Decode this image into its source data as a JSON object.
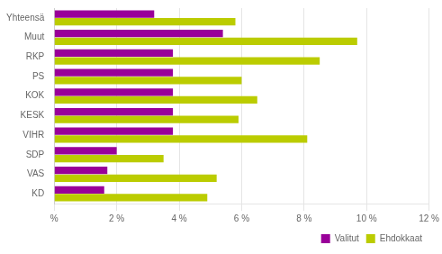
{
  "chart_data": {
    "type": "bar",
    "orientation": "horizontal",
    "categories": [
      "Yhteensä",
      "Muut",
      "RKP",
      "PS",
      "KOK",
      "KESK",
      "VIHR",
      "SDP",
      "VAS",
      "KD"
    ],
    "series": [
      {
        "name": "Valitut",
        "color": "#990099",
        "values": [
          3.2,
          5.4,
          3.8,
          3.8,
          3.8,
          3.8,
          3.8,
          2.0,
          1.7,
          1.6
        ]
      },
      {
        "name": "Ehdokkaat",
        "color": "#bbcc00",
        "values": [
          5.8,
          9.7,
          8.5,
          6.0,
          6.5,
          5.9,
          8.1,
          3.5,
          5.2,
          4.9
        ]
      }
    ],
    "xlim": [
      0,
      12
    ],
    "xticks": [
      {
        "value": 0,
        "label": "%"
      },
      {
        "value": 2,
        "label": "2 %"
      },
      {
        "value": 4,
        "label": "4 %"
      },
      {
        "value": 6,
        "label": "6 %"
      },
      {
        "value": 8,
        "label": "8 %"
      },
      {
        "value": 10,
        "label": "10 %"
      },
      {
        "value": 12,
        "label": "12 %"
      }
    ],
    "grid": true,
    "legend": "lower right"
  }
}
